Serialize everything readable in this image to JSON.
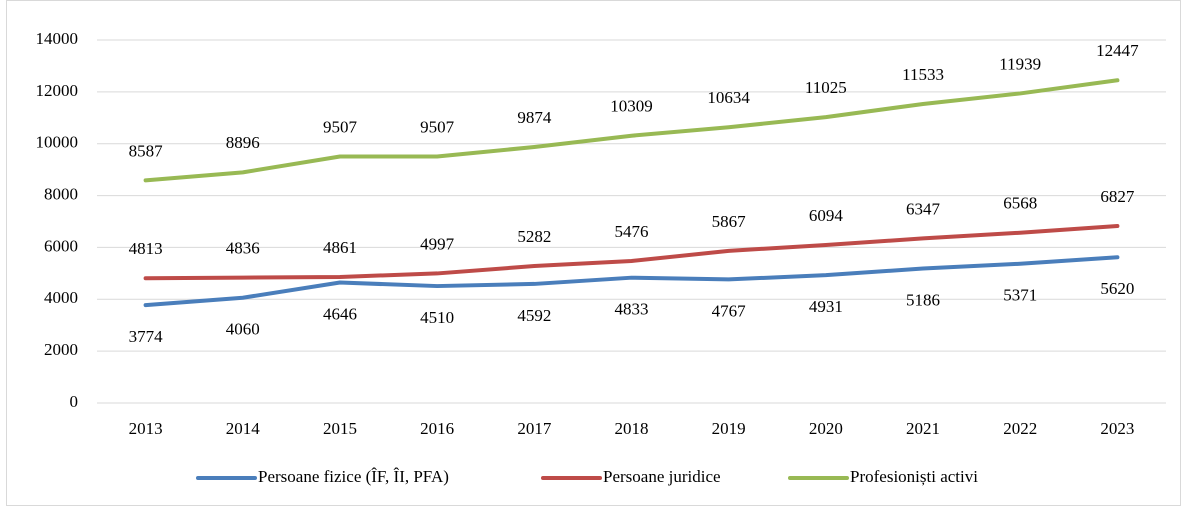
{
  "chart_data": {
    "type": "line",
    "categories": [
      "2013",
      "2014",
      "2015",
      "2016",
      "2017",
      "2018",
      "2019",
      "2020",
      "2021",
      "2022",
      "2023"
    ],
    "series": [
      {
        "name": "Persoane fizice (ÎF, ÎI, PFA)",
        "color": "#4a7ebb",
        "values": [
          3774,
          4060,
          4646,
          4510,
          4592,
          4833,
          4767,
          4931,
          5186,
          5371,
          5620
        ]
      },
      {
        "name": "Persoane juridice",
        "color": "#be4b48",
        "values": [
          4813,
          4836,
          4861,
          4997,
          5282,
          5476,
          5867,
          6094,
          6347,
          6568,
          6827
        ]
      },
      {
        "name": "Profesioniști activi",
        "color": "#98b954",
        "values": [
          8587,
          8896,
          9507,
          9507,
          9874,
          10309,
          10634,
          11025,
          11533,
          11939,
          12447
        ]
      }
    ],
    "ylim": [
      0,
      14000
    ],
    "yticks": [
      0,
      2000,
      4000,
      6000,
      8000,
      10000,
      12000,
      14000
    ],
    "grid": true,
    "legend": "bottom"
  }
}
